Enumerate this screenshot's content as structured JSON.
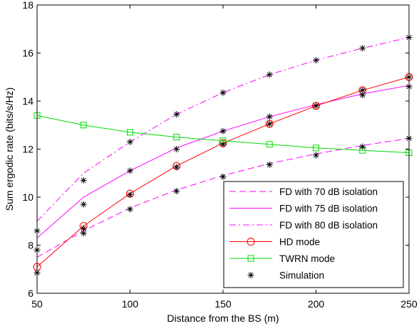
{
  "chart_data": {
    "type": "line",
    "title": "",
    "xlabel": "Distance from the BS (m)",
    "ylabel": "Sum ergodic rate (bits/s/Hz)",
    "xlim": [
      50,
      250
    ],
    "ylim": [
      6,
      18
    ],
    "xticks": [
      50,
      100,
      150,
      200,
      250
    ],
    "yticks": [
      6,
      8,
      10,
      12,
      14,
      16,
      18
    ],
    "grid": false,
    "legend_position": "bottom-right",
    "x": [
      50,
      75,
      100,
      125,
      150,
      175,
      200,
      225,
      250
    ],
    "series": [
      {
        "name": "FD with 70 dB isolation",
        "color": "#ff00ff",
        "line_style": "dashed",
        "marker": "none",
        "values": [
          7.5,
          8.6,
          9.55,
          10.3,
          10.9,
          11.4,
          11.8,
          12.15,
          12.45
        ]
      },
      {
        "name": "FD with 75 dB isolation",
        "color": "#ff00ff",
        "line_style": "solid",
        "marker": "none",
        "values": [
          8.3,
          10.0,
          11.1,
          12.05,
          12.75,
          13.35,
          13.85,
          14.3,
          14.65
        ]
      },
      {
        "name": "FD with 80 dB isolation",
        "color": "#ff00ff",
        "line_style": "dashdot",
        "marker": "none",
        "values": [
          9.0,
          11.0,
          12.3,
          13.45,
          14.35,
          15.1,
          15.7,
          16.2,
          16.65
        ]
      },
      {
        "name": "HD mode",
        "color": "#ff0000",
        "line_style": "solid",
        "marker": "circle",
        "values": [
          7.1,
          8.8,
          10.15,
          11.3,
          12.25,
          13.05,
          13.8,
          14.45,
          15.0
        ]
      },
      {
        "name": "TWRN mode",
        "color": "#00dd00",
        "line_style": "solid",
        "marker": "square",
        "values": [
          13.4,
          13.0,
          12.7,
          12.5,
          12.35,
          12.2,
          12.05,
          11.95,
          11.85
        ]
      }
    ],
    "simulation": {
      "name": "Simulation",
      "color": "#000000",
      "marker": "asterisk",
      "points": [
        [
          50,
          6.85
        ],
        [
          50,
          7.8
        ],
        [
          50,
          8.6
        ],
        [
          75,
          8.5
        ],
        [
          75,
          8.7
        ],
        [
          75,
          9.7
        ],
        [
          75,
          10.7
        ],
        [
          100,
          9.5
        ],
        [
          100,
          10.1
        ],
        [
          100,
          11.1
        ],
        [
          100,
          12.3
        ],
        [
          125,
          10.25
        ],
        [
          125,
          11.25
        ],
        [
          125,
          12.0
        ],
        [
          125,
          13.45
        ],
        [
          150,
          10.85
        ],
        [
          150,
          12.2
        ],
        [
          150,
          12.75
        ],
        [
          150,
          14.35
        ],
        [
          175,
          11.35
        ],
        [
          175,
          13.05
        ],
        [
          175,
          13.35
        ],
        [
          175,
          15.1
        ],
        [
          200,
          11.75
        ],
        [
          200,
          13.8
        ],
        [
          200,
          15.7
        ],
        [
          225,
          12.1
        ],
        [
          225,
          14.25
        ],
        [
          225,
          14.45
        ],
        [
          225,
          16.2
        ],
        [
          250,
          12.45
        ],
        [
          250,
          14.6
        ],
        [
          250,
          15.0
        ],
        [
          250,
          16.65
        ]
      ]
    }
  }
}
